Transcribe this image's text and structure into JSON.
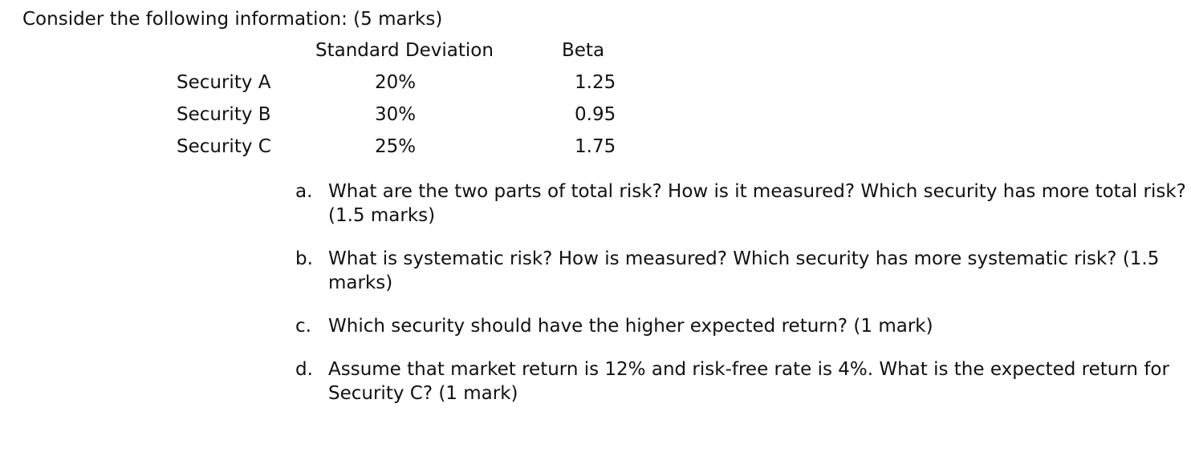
{
  "intro": "Consider the following information: (5 marks)",
  "table": {
    "headers": {
      "std_dev": "Standard Deviation",
      "beta": "Beta"
    },
    "rows": [
      {
        "security": "Security A",
        "std_dev": "20%",
        "beta": "1.25"
      },
      {
        "security": "Security B",
        "std_dev": "30%",
        "beta": "0.95"
      },
      {
        "security": "Security C",
        "std_dev": "25%",
        "beta": "1.75"
      }
    ]
  },
  "questions": [
    {
      "letter": "a.",
      "text": "What are the two parts of total risk? How is it measured? Which security has more total risk? (1.5 marks)"
    },
    {
      "letter": "b.",
      "text": "What is systematic risk? How is measured? Which security has more systematic risk? (1.5 marks)"
    },
    {
      "letter": "c.",
      "text": "Which security should have the higher expected return? (1 mark)"
    },
    {
      "letter": "d.",
      "text": "Assume that market return is 12% and risk-free rate is 4%. What is the expected return for Security C? (1 mark)"
    }
  ]
}
